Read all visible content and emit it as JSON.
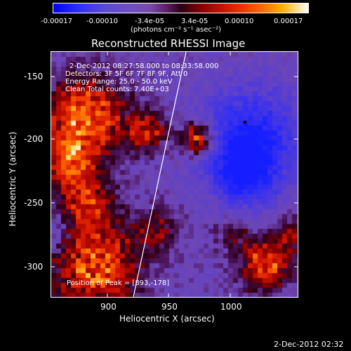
{
  "colorbar": {
    "tick_labels": [
      "-0.00017",
      "-0.00010",
      "-3.4e-05",
      "3.4e-05",
      "0.00010",
      "0.00017"
    ],
    "units": "(photons cm⁻² s⁻¹ asec⁻²)",
    "colors": [
      "#0000ff",
      "#6f4fc0",
      "#2a0014",
      "#c81000",
      "#ff6a00",
      "#ffffff"
    ]
  },
  "plot": {
    "title": "Reconstructed RHESSI Image",
    "xlabel": "Heliocentric X (arcsec)",
    "ylabel": "Heliocentric Y (arcsec)",
    "x_ticks": [
      "900",
      "950",
      "1000"
    ],
    "y_ticks": [
      "-150",
      "-200",
      "-250",
      "-300"
    ],
    "xlim": [
      861,
      1047
    ],
    "ylim": [
      -325,
      -130
    ],
    "annotations": [
      "2-Dec-2012 08:27:58.000 to 08:33:58.000",
      "Detectors: 3F 5F 6F 7F 8F 9F, Att 0",
      "Energy Range: 25.0 - 50.0 keV",
      "Clean    Total counts: 7.40E+03"
    ],
    "peak_label": "Position of Peak = [893,-178]",
    "timestamp": "2-Dec-2012 02:32"
  }
}
